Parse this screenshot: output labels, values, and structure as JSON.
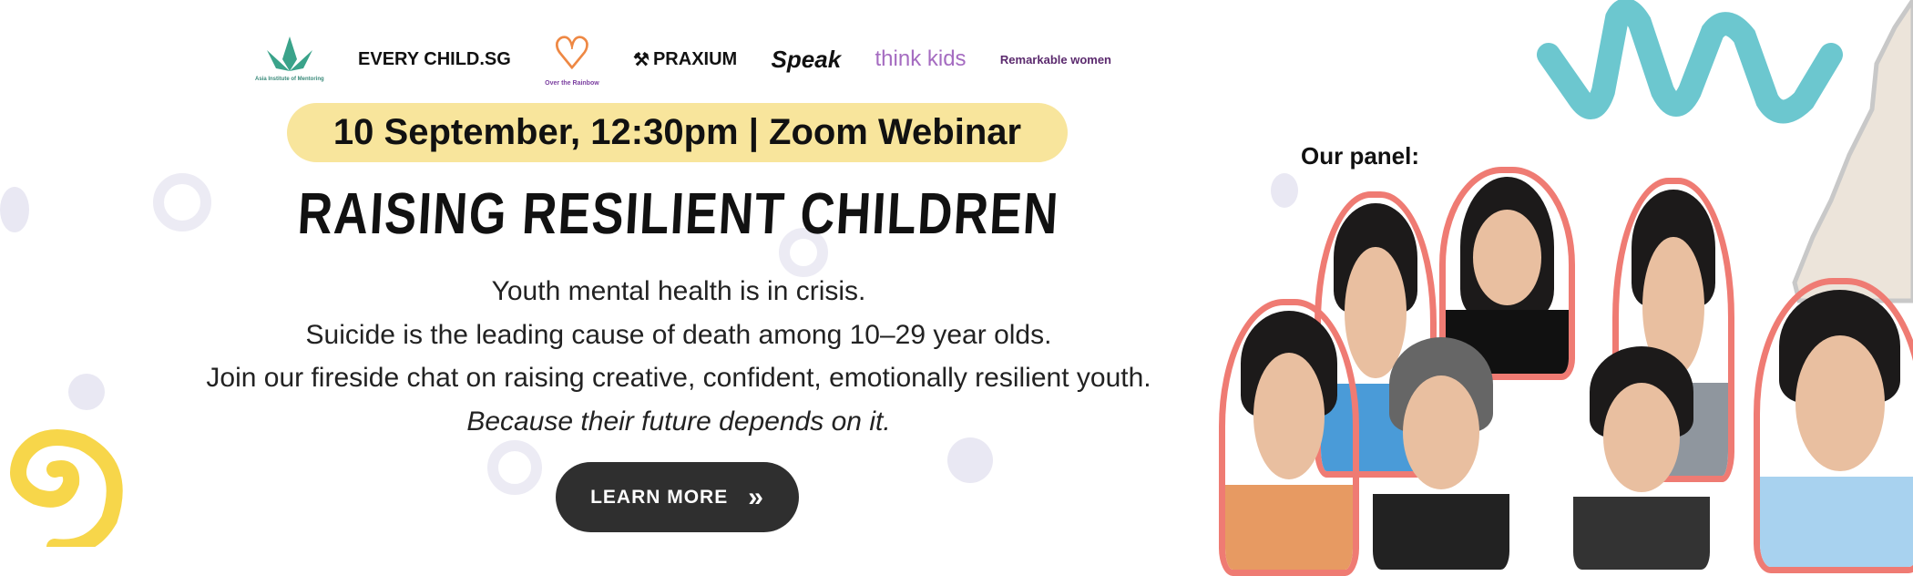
{
  "logos": [
    "Asia Institute of Mentoring",
    "EVERY CHILD.SG",
    "Over the Rainbow",
    "PRAXIUM",
    "Speak",
    "think kids",
    "Remarkable women"
  ],
  "event": {
    "datetime": "10 September, 12:30pm | Zoom Webinar"
  },
  "title": "RAISING RESILIENT CHILDREN",
  "body": {
    "line1": "Youth mental health is in crisis.",
    "line2": "Suicide is the leading cause of death among 10–29 year olds.",
    "line3": "Join our fireside chat on raising creative, confident, emotionally resilient youth.",
    "line4": "Because their future depends on it."
  },
  "cta": {
    "label": "LEARN MORE",
    "icon": "double-chevron-right-icon"
  },
  "panel": {
    "label": "Our panel:",
    "count": 7
  },
  "colors": {
    "pill": "#f8e59c",
    "button": "#2f2f2f",
    "outline": "#ef7b73",
    "teal": "#6cc7cf",
    "yellow": "#f7d64a"
  }
}
